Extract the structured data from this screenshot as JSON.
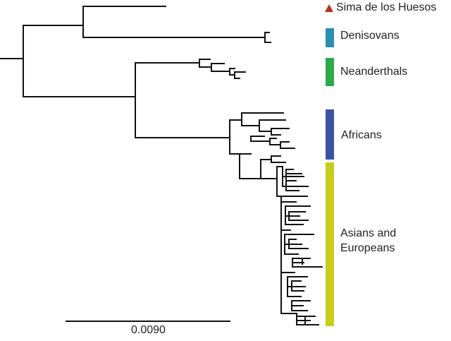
{
  "figure": {
    "clades": [
      {
        "id": "sima",
        "label": "Sima de los Huesos",
        "marker": "triangle",
        "color": "#b5321f"
      },
      {
        "id": "denisovans",
        "label": "Denisovans",
        "marker": "bar",
        "color": "#2a8fb0"
      },
      {
        "id": "neanderthals",
        "label": "Neanderthals",
        "marker": "bar",
        "color": "#2fa84a"
      },
      {
        "id": "africans",
        "label": "Africans",
        "marker": "bar",
        "color": "#3b53a5"
      },
      {
        "id": "asians_europeans",
        "label": "Asians and\nEuropeans",
        "marker": "bar",
        "color": "#c8cc1a"
      }
    ],
    "scale_bar": {
      "value": "0.0090"
    }
  }
}
